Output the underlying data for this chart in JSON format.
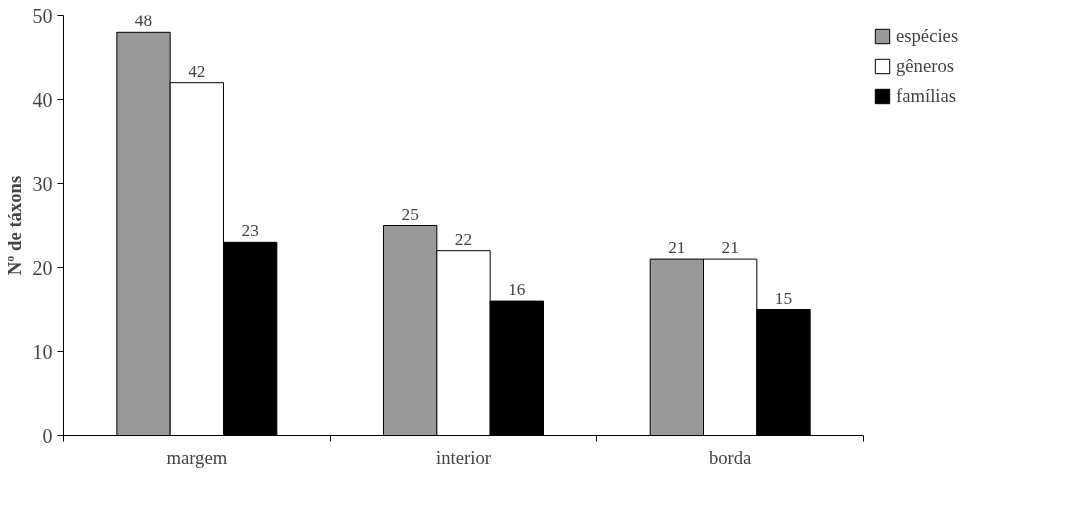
{
  "chart_data": {
    "type": "bar",
    "ylabel": "Nº de táxons",
    "categories": [
      "margem",
      "interior",
      "borda"
    ],
    "series": [
      {
        "name": "espécies",
        "color": "#999999",
        "values": [
          48,
          25,
          21
        ]
      },
      {
        "name": "gêneros",
        "color": "#ffffff",
        "values": [
          42,
          22,
          21
        ]
      },
      {
        "name": "famílias",
        "color": "#000000",
        "values": [
          23,
          16,
          15
        ]
      }
    ],
    "ylim": [
      0,
      50
    ],
    "yticks": [
      0,
      10,
      20,
      30,
      40,
      50
    ],
    "grid": false,
    "legend": "right",
    "data_labels": true
  }
}
